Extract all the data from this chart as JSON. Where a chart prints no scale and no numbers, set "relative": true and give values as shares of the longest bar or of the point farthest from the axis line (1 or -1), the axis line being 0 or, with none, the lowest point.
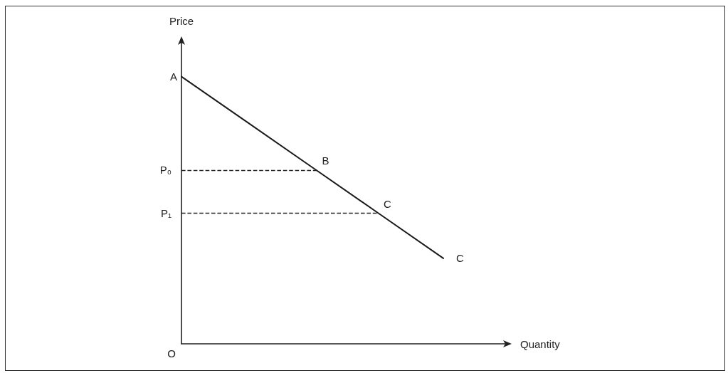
{
  "chart_data": {
    "type": "line",
    "relative": true,
    "xlabel": "Quantity",
    "ylabel": "Price",
    "categories": [
      null,
      null,
      null,
      null,
      null,
      null
    ],
    "series": [
      {
        "color": "#1a1a1a",
        "values": [
          1,
          0.83,
          0.66,
          0.49,
          0.32,
          null
        ]
      }
    ],
    "marker": "none",
    "grid": false,
    "ref_lines": [
      {
        "axis": "y",
        "value": 0.65,
        "label": "P₀",
        "color": "#222222",
        "line_style": "dashed"
      },
      {
        "axis": "y",
        "value": 0.49,
        "label": "P₁",
        "color": "#222222",
        "line_style": "dashed"
      }
    ],
    "annotations": [
      "A",
      "B",
      "C",
      "C",
      "O"
    ]
  }
}
